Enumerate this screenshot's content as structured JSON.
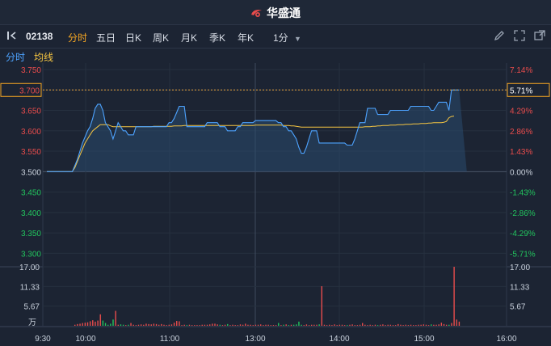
{
  "app": {
    "title": "华盛通"
  },
  "toolbar": {
    "stock_code": "02138",
    "tabs": [
      {
        "label": "分时",
        "active": true
      },
      {
        "label": "五日",
        "active": false
      },
      {
        "label": "日K",
        "active": false
      },
      {
        "label": "周K",
        "active": false
      },
      {
        "label": "月K",
        "active": false
      },
      {
        "label": "季K",
        "active": false
      },
      {
        "label": "年K",
        "active": false
      },
      {
        "label": "1分",
        "active": false
      }
    ]
  },
  "subbar": {
    "label1": "分时",
    "label2": "均线"
  },
  "colors": {
    "up": "#e84c4c",
    "down": "#22c55e",
    "price_line": "#4da3ff",
    "avg_line": "#f5c542",
    "accent": "#f5a623"
  },
  "chart_data": {
    "type": "line",
    "price_ticks": [
      "3.750",
      "3.700",
      "3.650",
      "3.600",
      "3.550",
      "3.500",
      "3.450",
      "3.400",
      "3.350",
      "3.300"
    ],
    "pct_ticks": [
      "7.14%",
      "5.71%",
      "4.29%",
      "2.86%",
      "1.43%",
      "0.00%",
      "-1.43%",
      "-2.86%",
      "-4.29%",
      "-5.71%"
    ],
    "current_price": "3.700",
    "current_pct": "5.71%",
    "prev_close": 3.5,
    "ylim": [
      3.275,
      3.75
    ],
    "volume_ticks": [
      "17.00",
      "11.33",
      "5.67"
    ],
    "volume_unit": "万",
    "volume_max": 17,
    "time_labels": [
      "9:30",
      "10:00",
      "11:00",
      "13:00",
      "14:00",
      "15:00",
      "16:00"
    ],
    "series": [
      {
        "values": [
          3.5,
          3.5,
          3.5,
          3.5,
          3.5,
          3.5,
          3.5,
          3.5,
          3.5,
          3.5,
          3.5,
          3.515,
          3.53,
          3.55,
          3.57,
          3.585,
          3.6,
          3.61,
          3.63,
          3.655,
          3.665,
          3.665,
          3.65,
          3.62,
          3.61,
          3.6,
          3.58,
          3.6,
          3.62,
          3.61,
          3.6,
          3.6,
          3.59,
          3.59,
          3.59,
          3.61,
          3.61,
          3.61,
          3.61,
          3.61,
          3.61,
          3.61,
          3.61,
          3.61,
          3.61,
          3.61,
          3.61,
          3.61,
          3.62,
          3.62,
          3.63,
          3.645,
          3.66,
          3.66,
          3.66,
          3.61,
          3.61,
          3.61,
          3.61,
          3.61,
          3.61,
          3.61,
          3.61,
          3.62,
          3.62,
          3.62,
          3.62,
          3.62,
          3.61,
          3.61,
          3.61,
          3.6,
          3.6,
          3.6,
          3.6,
          3.61,
          3.61,
          3.62,
          3.62,
          3.62,
          3.62,
          3.62,
          3.625,
          3.625,
          3.625,
          3.625,
          3.625,
          3.625,
          3.625,
          3.625,
          3.625,
          3.62,
          3.62,
          3.61,
          3.61,
          3.6,
          3.6,
          3.59,
          3.58,
          3.56,
          3.545,
          3.545,
          3.56,
          3.58,
          3.6,
          3.6,
          3.6,
          3.57,
          3.57,
          3.57,
          3.57,
          3.57,
          3.57,
          3.57,
          3.57,
          3.57,
          3.57,
          3.57,
          3.565,
          3.565,
          3.565,
          3.58,
          3.6,
          3.62,
          3.62,
          3.62,
          3.655,
          3.655,
          3.655,
          3.655,
          3.64,
          3.64,
          3.64,
          3.64,
          3.64,
          3.65,
          3.65,
          3.65,
          3.65,
          3.65,
          3.65,
          3.65,
          3.65,
          3.66,
          3.66,
          3.66,
          3.66,
          3.66,
          3.66,
          3.66,
          3.66,
          3.65,
          3.65,
          3.66,
          3.67,
          3.67,
          3.67,
          3.67,
          3.65,
          3.7,
          3.7,
          3.7,
          3.7
        ]
      },
      {
        "values": [
          3.5,
          3.5,
          3.5,
          3.5,
          3.5,
          3.5,
          3.5,
          3.5,
          3.5,
          3.5,
          3.5,
          3.51,
          3.525,
          3.54,
          3.555,
          3.57,
          3.58,
          3.59,
          3.6,
          3.605,
          3.61,
          3.615,
          3.615,
          3.615,
          3.615,
          3.612,
          3.61,
          3.61,
          3.61,
          3.61,
          3.61,
          3.61,
          3.61,
          3.61,
          3.61,
          3.61,
          3.61,
          3.61,
          3.61,
          3.61,
          3.61,
          3.61,
          3.611,
          3.611,
          3.611,
          3.611,
          3.611,
          3.611,
          3.611,
          3.611,
          3.612,
          3.612,
          3.612,
          3.612,
          3.613,
          3.613,
          3.613,
          3.613,
          3.613,
          3.613,
          3.613,
          3.613,
          3.613,
          3.613,
          3.613,
          3.613,
          3.613,
          3.613,
          3.613,
          3.613,
          3.613,
          3.613,
          3.613,
          3.613,
          3.613,
          3.613,
          3.613,
          3.613,
          3.613,
          3.613,
          3.613,
          3.613,
          3.614,
          3.614,
          3.614,
          3.614,
          3.614,
          3.614,
          3.614,
          3.614,
          3.614,
          3.614,
          3.614,
          3.613,
          3.613,
          3.613,
          3.612,
          3.612,
          3.611,
          3.61,
          3.609,
          3.609,
          3.609,
          3.609,
          3.609,
          3.609,
          3.609,
          3.609,
          3.609,
          3.609,
          3.609,
          3.609,
          3.609,
          3.609,
          3.609,
          3.609,
          3.609,
          3.609,
          3.609,
          3.609,
          3.609,
          3.609,
          3.609,
          3.609,
          3.609,
          3.61,
          3.61,
          3.61,
          3.611,
          3.611,
          3.612,
          3.612,
          3.613,
          3.613,
          3.613,
          3.614,
          3.614,
          3.614,
          3.615,
          3.615,
          3.615,
          3.616,
          3.616,
          3.616,
          3.617,
          3.617,
          3.617,
          3.618,
          3.618,
          3.618,
          3.619,
          3.619,
          3.62,
          3.62,
          3.62,
          3.62,
          3.621,
          3.623,
          3.632,
          3.635,
          3.636
        ]
      }
    ],
    "volume": [
      0,
      0,
      0,
      0,
      0,
      0,
      0,
      0,
      0,
      0,
      0,
      0.3,
      0.5,
      0.6,
      0.8,
      0.9,
      1.0,
      1.3,
      1.6,
      1.2,
      1.5,
      3.3,
      1.5,
      0.8,
      0.3,
      0.6,
      1.8,
      4.3,
      0.3,
      0.4,
      0.3,
      0.2,
      0.3,
      0.8,
      0.3,
      0.2,
      0.3,
      0.4,
      0.3,
      0.6,
      0.5,
      0.4,
      0.6,
      0.5,
      0.3,
      0.5,
      0.3,
      0.2,
      0.3,
      0.4,
      0.9,
      1.4,
      1.3,
      0.2,
      0.3,
      0.2,
      0.3,
      0.2,
      0.2,
      0.2,
      0.2,
      0.3,
      0.3,
      0.3,
      0.4,
      0.6,
      0.6,
      0.4,
      0.3,
      0.2,
      0.3,
      0.5,
      0.2,
      0.3,
      0.2,
      0.2,
      0.4,
      0.3,
      0.6,
      0.3,
      0.3,
      0.2,
      0.3,
      0.3,
      0.4,
      0.2,
      0.3,
      0.3,
      0.2,
      0.2,
      0.2,
      0.8,
      0.2,
      0.3,
      0.4,
      0.2,
      0.3,
      0.3,
      0.4,
      1.2,
      0.3,
      0.2,
      0.4,
      0.2,
      0.3,
      0.3,
      0.3,
      0.4,
      11.4,
      0.3,
      0.2,
      0.3,
      0.2,
      0.4,
      0.2,
      0.3,
      0.3,
      0.2,
      0.2,
      0.3,
      0.4,
      0.2,
      0.2,
      0.3,
      0.8,
      0.3,
      0.2,
      0.3,
      0.2,
      0.3,
      0.2,
      0.3,
      0.4,
      0.2,
      0.3,
      0.3,
      0.2,
      0.2,
      0.5,
      0.3,
      0.2,
      0.3,
      0.2,
      0.3,
      0.2,
      0.2,
      0.3,
      0.3,
      0.4,
      0.3,
      0.2,
      0.4,
      0.3,
      0.3,
      0.4,
      0.9,
      0.5,
      0.3,
      0.3,
      0.8,
      17.0,
      1.8,
      1.2
    ]
  }
}
